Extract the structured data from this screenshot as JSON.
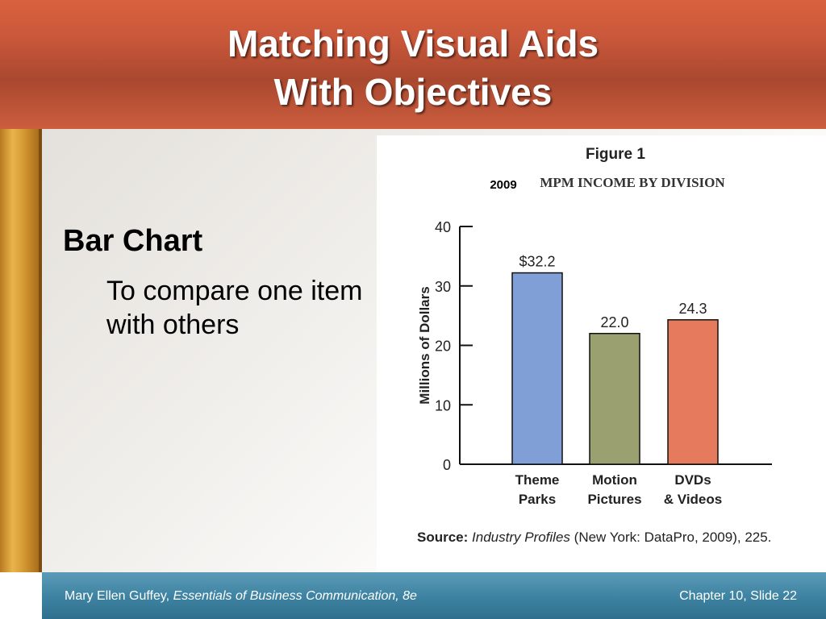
{
  "slide": {
    "title_line1": "Matching Visual Aids",
    "title_line2": "With Objectives",
    "heading": "Bar Chart",
    "subtext": "To compare one item with others"
  },
  "figure": {
    "label": "Figure 1",
    "year": "2009",
    "caption": "MPM INCOME BY DIVISION",
    "source_label": "Source:",
    "source_title": "Industry Profiles",
    "source_rest": "(New York: DataPro, 2009), 225."
  },
  "chart_data": {
    "type": "bar",
    "ylabel": "Millions of Dollars",
    "ylim": [
      0,
      40
    ],
    "yticks": [
      0,
      10,
      20,
      30,
      40
    ],
    "categories": [
      [
        "Theme",
        "Parks"
      ],
      [
        "Motion",
        "Pictures"
      ],
      [
        "DVDs",
        "& Videos"
      ]
    ],
    "values": [
      32.2,
      22.0,
      24.3
    ],
    "value_labels": [
      "$32.2",
      "22.0",
      "24.3"
    ],
    "colors": [
      "#7f9fd6",
      "#9aa06f",
      "#e57a5c"
    ]
  },
  "footer": {
    "author": "Mary Ellen Guffey,",
    "book": "Essentials of Business Communication, 8e",
    "slide_info": "Chapter 10, Slide 22"
  }
}
